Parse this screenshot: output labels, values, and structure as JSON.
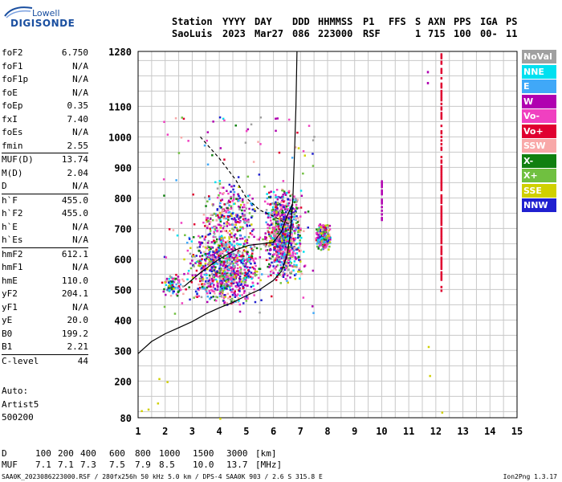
{
  "logo": {
    "top_text": "Lowell",
    "main_text": "DIGISONDE"
  },
  "header": {
    "labels": [
      "Station",
      "YYYY",
      "DAY",
      "DDD",
      "HHMMSS",
      "P1",
      "FFS",
      "S",
      "AXN",
      "PPS",
      "IGA",
      "PS"
    ],
    "values": [
      "SaoLuis",
      "2023",
      "Mar27",
      "086",
      "223000",
      "RSF",
      "1",
      "715",
      "100",
      "00-",
      "11"
    ]
  },
  "params": [
    {
      "label": "foF2",
      "value": "6.750"
    },
    {
      "label": "foF1",
      "value": "N/A"
    },
    {
      "label": "foF1p",
      "value": "N/A"
    },
    {
      "label": "foE",
      "value": "N/A"
    },
    {
      "label": "foEp",
      "value": "0.35"
    },
    {
      "label": "fxI",
      "value": "7.40"
    },
    {
      "label": "foEs",
      "value": "N/A"
    },
    {
      "label": "fmin",
      "value": "2.55"
    },
    {
      "label": "MUF(D)",
      "value": "13.74",
      "sep": true
    },
    {
      "label": "M(D)",
      "value": "2.04"
    },
    {
      "label": "D",
      "value": "N/A"
    },
    {
      "label": "h`F",
      "value": "455.0",
      "sep": true
    },
    {
      "label": "h`F2",
      "value": "455.0"
    },
    {
      "label": "h`E",
      "value": "N/A"
    },
    {
      "label": "h`Es",
      "value": "N/A"
    },
    {
      "label": "hmF2",
      "value": "612.1",
      "sep": true
    },
    {
      "label": "hmF1",
      "value": "N/A"
    },
    {
      "label": "hmE",
      "value": "110.0"
    },
    {
      "label": "yF2",
      "value": "204.1"
    },
    {
      "label": "yF1",
      "value": "N/A"
    },
    {
      "label": "yE",
      "value": "20.0"
    },
    {
      "label": "B0",
      "value": "199.2"
    },
    {
      "label": "B1",
      "value": "2.21"
    },
    {
      "label": "C-level",
      "value": "44",
      "sep": true
    }
  ],
  "auto_note": {
    "line1": "Auto:",
    "line2": "Artist5",
    "line3": "500200"
  },
  "legend": [
    {
      "label": "NoVal",
      "color": "#a0a0a0"
    },
    {
      "label": "NNE",
      "color": "#00e0f0"
    },
    {
      "label": "E",
      "color": "#40a8f8"
    },
    {
      "label": "W",
      "color": "#b000b0"
    },
    {
      "label": "Vo-",
      "color": "#f040c0"
    },
    {
      "label": "Vo+",
      "color": "#e00030"
    },
    {
      "label": "SSW",
      "color": "#f8a8a8"
    },
    {
      "label": "X-",
      "color": "#108010"
    },
    {
      "label": "X+",
      "color": "#70c040"
    },
    {
      "label": "SSE",
      "color": "#d0d000"
    },
    {
      "label": "NNW",
      "color": "#2020d0"
    }
  ],
  "muf_table": {
    "d_label": "D",
    "d_values": [
      "100",
      "200",
      "400",
      "600",
      "800",
      "1000",
      "1500",
      "3000",
      "[km]"
    ],
    "muf_label": "MUF",
    "muf_values": [
      "7.1",
      "7.1",
      "7.3",
      "7.5",
      "7.9",
      "8.5",
      "10.0",
      "13.7",
      "[MHz]"
    ]
  },
  "footer": {
    "left": "SAA0K_2023086223000.RSF / 280fx256h 50 kHz 5.0 km / DPS-4 SAA0K 903 / 2.6 S 315.8 E",
    "right": "Ion2Png 1.3.17"
  },
  "chart_data": {
    "type": "scatter",
    "title": "",
    "xlabel": "",
    "ylabel": "",
    "xlim": [
      1,
      15
    ],
    "ylim": [
      80,
      1280
    ],
    "x_ticks": [
      1,
      2,
      3,
      4,
      5,
      6,
      7,
      8,
      9,
      10,
      11,
      12,
      13,
      14,
      15
    ],
    "y_ticks": [
      80,
      200,
      300,
      400,
      500,
      600,
      700,
      800,
      900,
      1000,
      1100,
      1280
    ],
    "grid": true,
    "legend_position": "right",
    "clusters": [
      {
        "name": "F-trace main",
        "x_range": [
          2.7,
          5.6
        ],
        "y_range": [
          445,
          700
        ],
        "density": "high"
      },
      {
        "name": "F-trace high",
        "x_range": [
          3.2,
          5.4
        ],
        "y_range": [
          620,
          870
        ],
        "density": "medium"
      },
      {
        "name": "near foF2",
        "x_range": [
          5.6,
          7.1
        ],
        "y_range": [
          520,
          840
        ],
        "density": "high"
      },
      {
        "name": "oblique echoes",
        "x_range": [
          7.5,
          8.1
        ],
        "y_range": [
          630,
          720
        ],
        "density": "medium"
      },
      {
        "name": "low echoes",
        "x_range": [
          1.8,
          2.7
        ],
        "y_range": [
          480,
          560
        ],
        "density": "low"
      },
      {
        "name": "spread",
        "x_range": [
          1.9,
          7.5
        ],
        "y_range": [
          420,
          1070
        ],
        "density": "sparse"
      }
    ],
    "vertical_traces": [
      {
        "x": 12.2,
        "y_range": [
          500,
          1280
        ],
        "color": "#e00030"
      },
      {
        "x": 10.0,
        "y_range": [
          720,
          860
        ],
        "color": "#b000b0"
      },
      {
        "x": 11.7,
        "y_range": [
          1180,
          1220
        ],
        "color": "#b000b0"
      }
    ],
    "profile_curve": {
      "points": [
        [
          1.0,
          290
        ],
        [
          1.5,
          330
        ],
        [
          2.0,
          355
        ],
        [
          2.5,
          375
        ],
        [
          3.0,
          395
        ],
        [
          3.5,
          420
        ],
        [
          4.0,
          440
        ],
        [
          4.5,
          458
        ],
        [
          5.0,
          480
        ],
        [
          5.5,
          500
        ],
        [
          6.0,
          530
        ],
        [
          6.3,
          560
        ],
        [
          6.5,
          610
        ],
        [
          6.62,
          680
        ],
        [
          6.72,
          800
        ],
        [
          6.78,
          950
        ],
        [
          6.83,
          1100
        ],
        [
          6.87,
          1280
        ]
      ],
      "style": "solid"
    },
    "dashed_curve": {
      "points": [
        [
          3.3,
          1000
        ],
        [
          4.0,
          930
        ],
        [
          4.6,
          860
        ],
        [
          5.0,
          800
        ],
        [
          5.5,
          760
        ],
        [
          6.0,
          740
        ],
        [
          6.4,
          720
        ],
        [
          6.6,
          715
        ]
      ],
      "style": "dashed"
    },
    "model_trace": {
      "points": [
        [
          2.7,
          510
        ],
        [
          3.3,
          555
        ],
        [
          4.0,
          600
        ],
        [
          4.6,
          630
        ],
        [
          5.1,
          645
        ],
        [
          5.6,
          650
        ],
        [
          6.0,
          655
        ],
        [
          6.3,
          690
        ],
        [
          6.5,
          740
        ],
        [
          6.7,
          780
        ]
      ],
      "style": "solid"
    }
  }
}
